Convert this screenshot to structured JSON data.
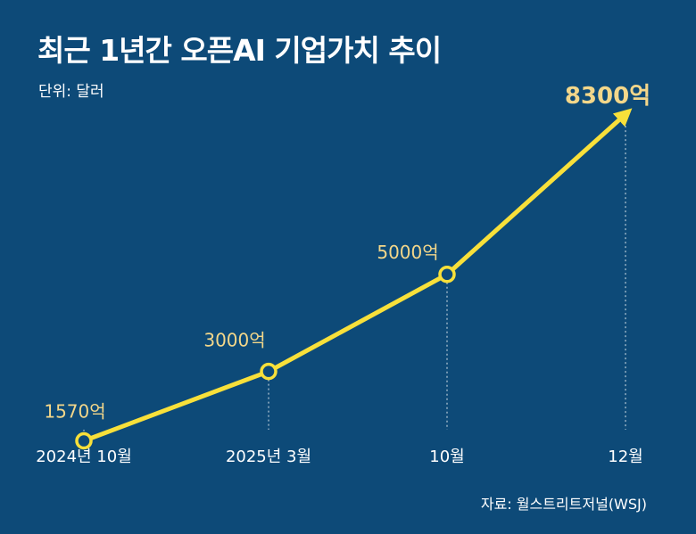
{
  "title": "최근 1년간 오픈AI 기업가치 추이",
  "unit_label": "단위: 달러",
  "source": "자료: 월스트리트저널(WSJ)",
  "colors": {
    "background": "#0d4a78",
    "line": "#f8e03a",
    "label": "#f3d78a",
    "text": "#ffffff"
  },
  "chart_data": {
    "type": "line",
    "title": "최근 1년간 오픈AI 기업가치 추이",
    "ylabel": "단위: 달러",
    "xlabel": "",
    "categories": [
      "2024년 10월",
      "2025년 3월",
      "10월",
      "12월"
    ],
    "values": [
      1570,
      3000,
      5000,
      8300
    ],
    "value_labels": [
      "1570억",
      "3000억",
      "5000억",
      "8300억"
    ],
    "ylim": [
      0,
      9000
    ],
    "grid": false,
    "legend": "none"
  }
}
